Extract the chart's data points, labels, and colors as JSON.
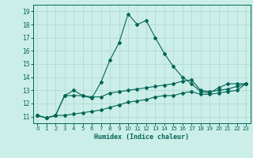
{
  "title": "",
  "xlabel": "Humidex (Indice chaleur)",
  "background_color": "#cceee8",
  "grid_color": "#aad8d0",
  "line_color": "#006655",
  "hours": [
    0,
    1,
    2,
    3,
    4,
    5,
    6,
    7,
    8,
    9,
    10,
    11,
    12,
    13,
    14,
    15,
    16,
    17,
    18,
    19,
    20,
    21,
    22,
    23
  ],
  "series_max": [
    11.1,
    10.9,
    11.1,
    12.6,
    13.0,
    12.6,
    12.4,
    13.6,
    15.3,
    16.6,
    18.8,
    18.0,
    18.3,
    17.0,
    15.8,
    14.8,
    14.0,
    13.5,
    12.9,
    12.8,
    13.2,
    13.5,
    13.5,
    13.5
  ],
  "series_mid": [
    11.1,
    10.9,
    11.1,
    12.6,
    12.6,
    12.6,
    12.5,
    12.5,
    12.8,
    12.9,
    13.0,
    13.1,
    13.2,
    13.3,
    13.4,
    13.5,
    13.7,
    13.8,
    13.0,
    12.9,
    13.0,
    13.1,
    13.3,
    13.5
  ],
  "series_min": [
    11.1,
    10.9,
    11.1,
    11.1,
    11.2,
    11.3,
    11.4,
    11.5,
    11.7,
    11.9,
    12.1,
    12.2,
    12.3,
    12.5,
    12.6,
    12.6,
    12.8,
    12.9,
    12.7,
    12.7,
    12.8,
    12.9,
    13.0,
    13.5
  ],
  "xlim": [
    -0.5,
    23.5
  ],
  "ylim": [
    10.5,
    19.5
  ],
  "yticks": [
    11,
    12,
    13,
    14,
    15,
    16,
    17,
    18,
    19
  ],
  "xticks": [
    0,
    1,
    2,
    3,
    4,
    5,
    6,
    7,
    8,
    9,
    10,
    11,
    12,
    13,
    14,
    15,
    16,
    17,
    18,
    19,
    20,
    21,
    22,
    23
  ]
}
